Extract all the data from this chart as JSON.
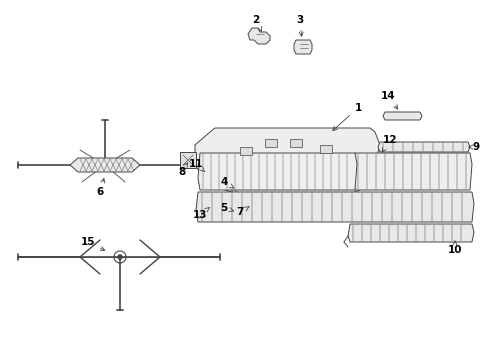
{
  "background": "#ffffff",
  "line_color": "#444444",
  "label_color": "#000000",
  "fig_width": 4.89,
  "fig_height": 3.6,
  "dpi": 100
}
